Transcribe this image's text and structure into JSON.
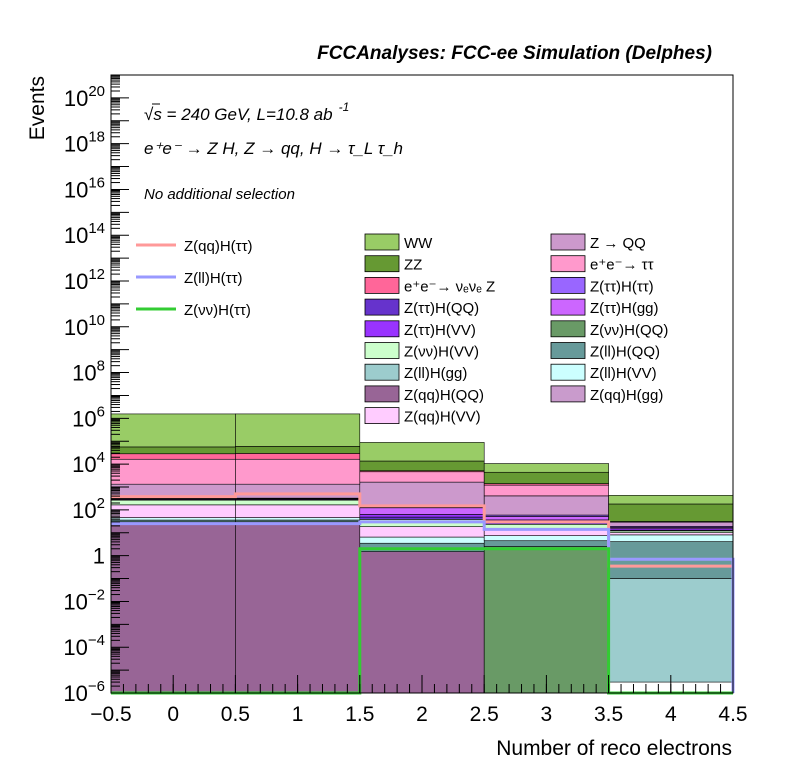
{
  "chart_data": {
    "type": "histogram-stacked",
    "title": "FCCAnalyses: FCC-ee Simulation (Delphes)",
    "xlabel": "Number of reco electrons",
    "ylabel": "Events",
    "xlim": [
      -0.5,
      4.5
    ],
    "ylim": [
      1e-06,
      1e+21
    ],
    "ylog": true,
    "x_ticks": [
      "−0.5",
      "0",
      "0.5",
      "1",
      "1.5",
      "2",
      "2.5",
      "3",
      "3.5",
      "4",
      "4.5"
    ],
    "x_tick_values": [
      -0.5,
      0,
      0.5,
      1,
      1.5,
      2,
      2.5,
      3,
      3.5,
      4,
      4.5
    ],
    "y_tick_exponents": [
      -6,
      -4,
      -2,
      0,
      2,
      4,
      6,
      8,
      10,
      12,
      14,
      16,
      18,
      20
    ],
    "y_tick_labels": {
      "one": "1",
      "ten": "10"
    },
    "bin_edges": [
      -0.5,
      0.5,
      1.5,
      2.5,
      3.5,
      4.5
    ],
    "annotations": {
      "energy": "√s = 240 GeV, L=10.8 ab",
      "energy_sup": "-1",
      "process": "e⁺e⁻ → Z H, Z → qq, H → τ_L τ_h",
      "selection": "No additional selection"
    },
    "stack_series": [
      {
        "name": "Z(qq)H(QQ)",
        "color": "#986596",
        "values": [
          30,
          30,
          1.5,
          1e-06,
          1e-06
        ]
      },
      {
        "name": "Z(qq)H(gg)",
        "color": "#c99bcc",
        "values": [
          1e-06,
          0.15,
          1e-06,
          1e-06,
          1e-06
        ]
      },
      {
        "name": "Z(νν)H(QQ)",
        "color": "#699a66",
        "values": [
          1e-06,
          1e-06,
          1e-06,
          2.5,
          1e-06
        ]
      },
      {
        "name": "Z(ll)H(gg)",
        "color": "#9ccccd",
        "values": [
          1e-06,
          1e-06,
          1e-06,
          1e-06,
          0.1
        ]
      },
      {
        "name": "Z(ll)H(QQ)",
        "color": "#679a9a",
        "values": [
          6,
          6,
          2,
          2,
          4
        ]
      },
      {
        "name": "Z(ll)H(VV)",
        "color": "#ccffff",
        "values": [
          10,
          10,
          3,
          3,
          4
        ]
      },
      {
        "name": "Z(qq)H(VV)",
        "color": "#ffccff",
        "values": [
          120,
          120,
          12,
          6,
          2
        ]
      },
      {
        "name": "Z(νν)H(VV)",
        "color": "#ccffcc",
        "values": [
          100,
          100,
          20,
          10,
          2
        ]
      },
      {
        "name": "Z(ττ)H(QQ)",
        "color": "#6633cc",
        "values": [
          20,
          20,
          10,
          5,
          1
        ]
      },
      {
        "name": "Z(ττ)H(VV)",
        "color": "#9933ff",
        "values": [
          20,
          20,
          15,
          8,
          2
        ]
      },
      {
        "name": "Z(ττ)H(gg)",
        "color": "#cc66ff",
        "values": [
          10,
          10,
          60,
          15,
          2
        ]
      },
      {
        "name": "Z(ττ)H(ττ)",
        "color": "#9966ff",
        "values": [
          10,
          10,
          10,
          8,
          2
        ]
      },
      {
        "name": "Z → QQ",
        "color": "#cc99cc",
        "values": [
          1000,
          1000,
          1500,
          350,
          10
        ]
      },
      {
        "name": "e⁺e⁻→ ττ",
        "color": "#ff99cc",
        "values": [
          15000,
          15000,
          3000,
          800,
          1
        ]
      },
      {
        "name": "e⁺e⁻→ νₑνₑ Z",
        "color": "#ff6699",
        "values": [
          12000,
          13000,
          500,
          200,
          1
        ]
      },
      {
        "name": "ZZ",
        "color": "#669933",
        "values": [
          28000,
          30000,
          8500,
          3000,
          150
        ]
      },
      {
        "name": "WW",
        "color": "#99cc66",
        "values": [
          1500000,
          1500000,
          75000,
          6200,
          250
        ]
      }
    ],
    "signal_series": [
      {
        "name": "Z(qq)H(ττ)",
        "color": "#ff9999",
        "values": [
          380,
          500,
          150,
          30,
          0.35
        ]
      },
      {
        "name": "Z(ll)H(ττ)",
        "color": "#9999ff",
        "values": [
          25,
          25,
          30,
          14,
          0.7
        ]
      },
      {
        "name": "Z(νν)H(ττ)",
        "color": "#33cc33",
        "values": [
          1e-06,
          1e-06,
          2,
          2,
          1e-06
        ]
      }
    ],
    "legend": {
      "placement": "top-right",
      "col1": [
        "WW",
        "ZZ",
        "e⁺e⁻→ νₑνₑ Z",
        "Z(ττ)H(QQ)",
        "Z(ττ)H(VV)",
        "Z(νν)H(VV)",
        "Z(ll)H(gg)",
        "Z(qq)H(QQ)",
        "Z(qq)H(VV)"
      ],
      "col2": [
        "Z → QQ",
        "e⁺e⁻→ ττ",
        "Z(ττ)H(ττ)",
        "Z(ττ)H(gg)",
        "Z(νν)H(QQ)",
        "Z(ll)H(QQ)",
        "Z(ll)H(VV)",
        "Z(qq)H(gg)"
      ],
      "signals": [
        "Z(qq)H(ττ)",
        "Z(ll)H(ττ)",
        "Z(νν)H(ττ)"
      ]
    },
    "grid": false
  }
}
